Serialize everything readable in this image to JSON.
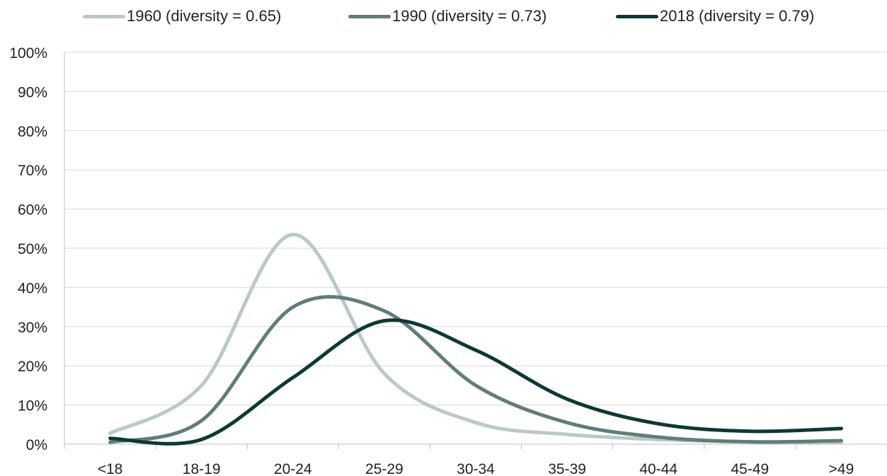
{
  "chart_data": {
    "type": "line",
    "categories": [
      "<18",
      "18-19",
      "20-24",
      "25-29",
      "30-34",
      "35-39",
      "40-44",
      "45-49",
      ">49"
    ],
    "series": [
      {
        "name": "1960 (diversity = 0.65)",
        "color": "#b9c9c8",
        "values": [
          2.8,
          15,
          53.5,
          18,
          5.5,
          2.5,
          1.2,
          0.6,
          0.5
        ]
      },
      {
        "name": "1990 (diversity = 0.73)",
        "color": "#5f7d7c",
        "values": [
          0.5,
          6,
          35,
          34,
          15,
          5.5,
          1.8,
          0.6,
          0.9
        ]
      },
      {
        "name": "2018 (diversity = 0.79)",
        "color": "#0b3a36",
        "values": [
          1.5,
          1.2,
          17,
          31.5,
          24,
          11.5,
          5.2,
          3.3,
          4
        ]
      }
    ],
    "yticks": [
      "0%",
      "10%",
      "20%",
      "30%",
      "40%",
      "50%",
      "60%",
      "70%",
      "80%",
      "90%",
      "100%"
    ],
    "ylim": [
      0,
      100
    ],
    "grid": true,
    "legend_position": "top"
  }
}
